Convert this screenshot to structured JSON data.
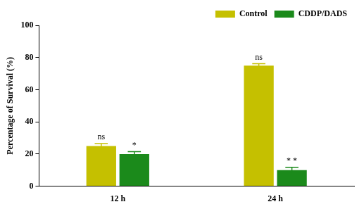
{
  "chart_data": {
    "type": "bar",
    "categories": [
      "12 h",
      "24 h"
    ],
    "y_label": "Percentage of Survival (%)",
    "series": [
      {
        "name": "Control",
        "color": "#c5c000",
        "values": [
          25,
          75
        ],
        "errors": [
          1.5,
          1.2
        ],
        "annotations": [
          "ns",
          "ns"
        ]
      },
      {
        "name": "CDDP/DADS",
        "color": "#1b8a1b",
        "values": [
          20,
          10
        ],
        "errors": [
          1.5,
          1.8
        ],
        "annotations": [
          "*",
          "* *"
        ]
      }
    ],
    "ylim": [
      0,
      100
    ],
    "yticks": [
      0,
      20,
      40,
      60,
      80,
      100
    ],
    "grid": false,
    "legend": "upper right"
  }
}
